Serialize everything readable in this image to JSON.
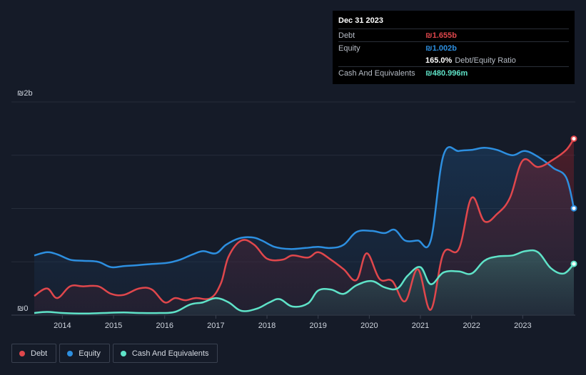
{
  "chart_data": {
    "type": "area",
    "title": "",
    "xlabel": "",
    "ylabel": "",
    "x_range": [
      2013.45,
      2024.0
    ],
    "ylim": [
      0,
      2.0
    ],
    "y_ticks": [
      {
        "value": 2.0,
        "label": "₪2b"
      },
      {
        "value": 0,
        "label": "₪0"
      }
    ],
    "x_ticks": [
      "2014",
      "2015",
      "2016",
      "2017",
      "2018",
      "2019",
      "2020",
      "2021",
      "2022",
      "2023"
    ],
    "grid": true,
    "legend_position": "bottom-left",
    "series": [
      {
        "name": "Equity",
        "color": "#2d8fe0",
        "values": [
          [
            2013.45,
            0.56
          ],
          [
            2013.7,
            0.59
          ],
          [
            2013.9,
            0.57
          ],
          [
            2014.15,
            0.52
          ],
          [
            2014.4,
            0.51
          ],
          [
            2014.7,
            0.5
          ],
          [
            2014.95,
            0.45
          ],
          [
            2015.2,
            0.46
          ],
          [
            2015.5,
            0.47
          ],
          [
            2015.75,
            0.48
          ],
          [
            2016.05,
            0.49
          ],
          [
            2016.3,
            0.52
          ],
          [
            2016.55,
            0.57
          ],
          [
            2016.75,
            0.6
          ],
          [
            2017.0,
            0.58
          ],
          [
            2017.2,
            0.66
          ],
          [
            2017.45,
            0.72
          ],
          [
            2017.7,
            0.73
          ],
          [
            2017.9,
            0.7
          ],
          [
            2018.15,
            0.64
          ],
          [
            2018.45,
            0.62
          ],
          [
            2018.75,
            0.63
          ],
          [
            2019.0,
            0.64
          ],
          [
            2019.25,
            0.63
          ],
          [
            2019.5,
            0.66
          ],
          [
            2019.75,
            0.78
          ],
          [
            2020.05,
            0.79
          ],
          [
            2020.3,
            0.77
          ],
          [
            2020.5,
            0.8
          ],
          [
            2020.7,
            0.7
          ],
          [
            2020.95,
            0.7
          ],
          [
            2021.2,
            0.7
          ],
          [
            2021.45,
            1.5
          ],
          [
            2021.75,
            1.54
          ],
          [
            2022.0,
            1.55
          ],
          [
            2022.25,
            1.57
          ],
          [
            2022.5,
            1.55
          ],
          [
            2022.8,
            1.5
          ],
          [
            2023.05,
            1.54
          ],
          [
            2023.35,
            1.47
          ],
          [
            2023.6,
            1.38
          ],
          [
            2023.85,
            1.29
          ],
          [
            2024.0,
            1.002
          ]
        ]
      },
      {
        "name": "Debt",
        "color": "#e0474c",
        "values": [
          [
            2013.45,
            0.18
          ],
          [
            2013.7,
            0.25
          ],
          [
            2013.9,
            0.16
          ],
          [
            2014.15,
            0.27
          ],
          [
            2014.4,
            0.27
          ],
          [
            2014.7,
            0.27
          ],
          [
            2014.95,
            0.2
          ],
          [
            2015.2,
            0.19
          ],
          [
            2015.5,
            0.25
          ],
          [
            2015.75,
            0.24
          ],
          [
            2016.0,
            0.12
          ],
          [
            2016.2,
            0.16
          ],
          [
            2016.4,
            0.14
          ],
          [
            2016.6,
            0.16
          ],
          [
            2016.9,
            0.16
          ],
          [
            2017.1,
            0.3
          ],
          [
            2017.25,
            0.55
          ],
          [
            2017.5,
            0.7
          ],
          [
            2017.75,
            0.66
          ],
          [
            2018.0,
            0.53
          ],
          [
            2018.3,
            0.52
          ],
          [
            2018.5,
            0.56
          ],
          [
            2018.8,
            0.54
          ],
          [
            2019.0,
            0.59
          ],
          [
            2019.25,
            0.52
          ],
          [
            2019.5,
            0.43
          ],
          [
            2019.75,
            0.33
          ],
          [
            2019.95,
            0.58
          ],
          [
            2020.2,
            0.34
          ],
          [
            2020.45,
            0.32
          ],
          [
            2020.7,
            0.13
          ],
          [
            2020.95,
            0.43
          ],
          [
            2021.2,
            0.05
          ],
          [
            2021.45,
            0.58
          ],
          [
            2021.75,
            0.62
          ],
          [
            2022.0,
            1.1
          ],
          [
            2022.25,
            0.88
          ],
          [
            2022.5,
            0.95
          ],
          [
            2022.75,
            1.1
          ],
          [
            2023.0,
            1.45
          ],
          [
            2023.3,
            1.39
          ],
          [
            2023.6,
            1.46
          ],
          [
            2023.85,
            1.55
          ],
          [
            2024.0,
            1.655
          ]
        ]
      },
      {
        "name": "Cash And Equivalents",
        "color": "#5fe3c8",
        "values": [
          [
            2013.45,
            0.02
          ],
          [
            2013.7,
            0.03
          ],
          [
            2014.0,
            0.02
          ],
          [
            2014.4,
            0.015
          ],
          [
            2014.8,
            0.02
          ],
          [
            2015.2,
            0.025
          ],
          [
            2015.5,
            0.02
          ],
          [
            2015.9,
            0.02
          ],
          [
            2016.2,
            0.03
          ],
          [
            2016.5,
            0.1
          ],
          [
            2016.75,
            0.12
          ],
          [
            2017.0,
            0.16
          ],
          [
            2017.25,
            0.12
          ],
          [
            2017.5,
            0.04
          ],
          [
            2017.8,
            0.06
          ],
          [
            2018.05,
            0.12
          ],
          [
            2018.25,
            0.15
          ],
          [
            2018.5,
            0.08
          ],
          [
            2018.8,
            0.11
          ],
          [
            2019.0,
            0.23
          ],
          [
            2019.25,
            0.24
          ],
          [
            2019.5,
            0.2
          ],
          [
            2019.75,
            0.28
          ],
          [
            2020.05,
            0.32
          ],
          [
            2020.3,
            0.26
          ],
          [
            2020.55,
            0.25
          ],
          [
            2020.75,
            0.37
          ],
          [
            2021.0,
            0.45
          ],
          [
            2021.2,
            0.29
          ],
          [
            2021.45,
            0.4
          ],
          [
            2021.75,
            0.41
          ],
          [
            2022.0,
            0.39
          ],
          [
            2022.25,
            0.51
          ],
          [
            2022.5,
            0.55
          ],
          [
            2022.8,
            0.56
          ],
          [
            2023.05,
            0.6
          ],
          [
            2023.3,
            0.59
          ],
          [
            2023.55,
            0.44
          ],
          [
            2023.8,
            0.39
          ],
          [
            2024.0,
            0.481
          ]
        ]
      }
    ]
  },
  "tooltip": {
    "date": "Dec 31 2023",
    "rows": [
      {
        "label": "Debt",
        "value": "₪1.655b",
        "color": "#e0474c"
      },
      {
        "label": "Equity",
        "value": "₪1.002b",
        "color": "#2d8fe0"
      }
    ],
    "ratio_pct": "165.0%",
    "ratio_label": "Debt/Equity Ratio",
    "cash_label": "Cash And Equivalents",
    "cash_value": "₪480.996m",
    "cash_color": "#5fe3c8"
  },
  "legend": [
    {
      "label": "Debt",
      "color": "#e0474c"
    },
    {
      "label": "Equity",
      "color": "#2d8fe0"
    },
    {
      "label": "Cash And Equivalents",
      "color": "#5fe3c8"
    }
  ]
}
